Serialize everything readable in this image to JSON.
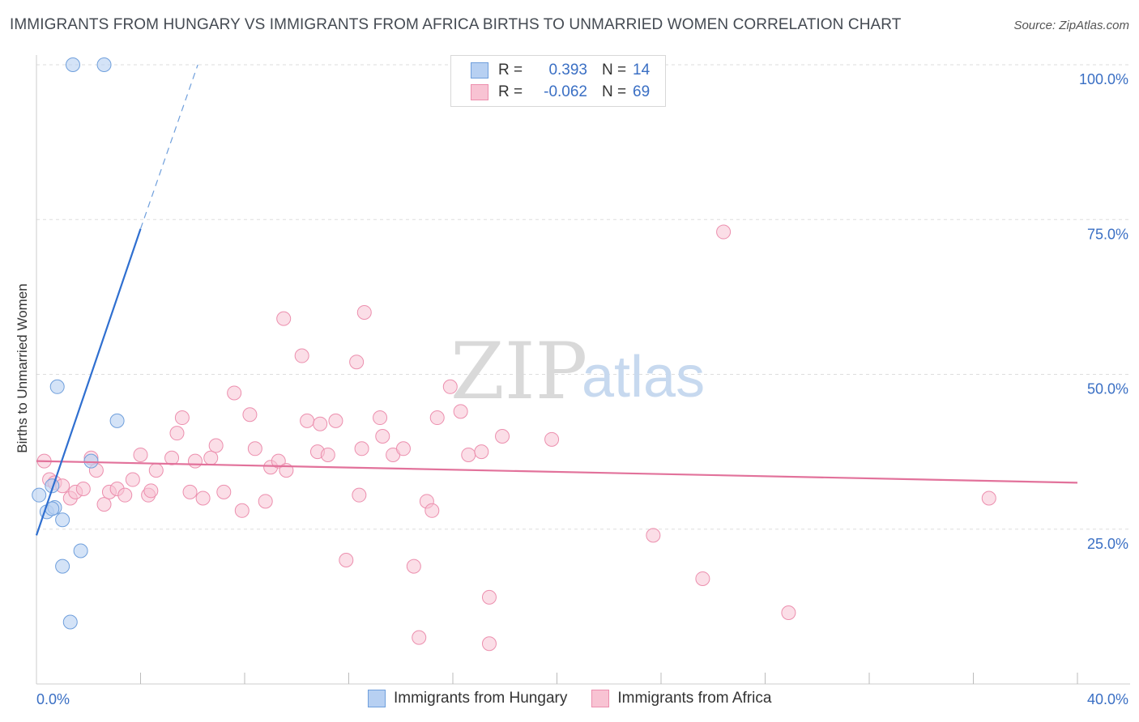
{
  "title": "IMMIGRANTS FROM HUNGARY VS IMMIGRANTS FROM AFRICA BIRTHS TO UNMARRIED WOMEN CORRELATION CHART",
  "source": "Source: ZipAtlas.com",
  "watermark": {
    "zip": "ZIP",
    "atlas": "atlas"
  },
  "colors": {
    "hungary_fill": "#b7d0f2",
    "hungary_stroke": "#6f9fdc",
    "hungary_line": "#2f6fd0",
    "africa_fill": "#f8c3d3",
    "africa_stroke": "#ec8fae",
    "africa_line": "#e2729b",
    "tick_label": "#3a6fc4",
    "grid": "#dddddd"
  },
  "legend": {
    "hungary": {
      "r_label": "R =",
      "r_value": "0.393",
      "n_label": "N =",
      "n_value": "14"
    },
    "africa": {
      "r_label": "R =",
      "r_value": "-0.062",
      "n_label": "N =",
      "n_value": "69"
    }
  },
  "chart_data": {
    "type": "scatter",
    "title": "IMMIGRANTS FROM HUNGARY VS IMMIGRANTS FROM AFRICA BIRTHS TO UNMARRIED WOMEN CORRELATION CHART",
    "xlabel": "",
    "ylabel": "Births to Unmarried Women",
    "xlim": [
      0,
      40
    ],
    "ylim": [
      0,
      100
    ],
    "x_tick_labels": {
      "min": "0.0%",
      "max": "40.0%"
    },
    "y_ticks": [
      25,
      50,
      75,
      100
    ],
    "y_tick_labels": [
      "25.0%",
      "50.0%",
      "75.0%",
      "100.0%"
    ],
    "grid": true,
    "legend_position": "top-center and bottom",
    "series": [
      {
        "name": "Immigrants from Hungary",
        "R": 0.393,
        "N": 14,
        "points": [
          [
            0.1,
            30.5
          ],
          [
            0.4,
            27.8
          ],
          [
            0.6,
            32.0
          ],
          [
            0.7,
            28.5
          ],
          [
            0.8,
            48.0
          ],
          [
            1.0,
            26.5
          ],
          [
            1.0,
            19.0
          ],
          [
            1.3,
            10.0
          ],
          [
            1.4,
            100.0
          ],
          [
            1.7,
            21.5
          ],
          [
            2.1,
            36.0
          ],
          [
            2.6,
            100.0
          ],
          [
            3.1,
            42.5
          ],
          [
            0.6,
            28.3
          ]
        ],
        "trend": {
          "x0": 0,
          "y0": 24.0,
          "x1": 4.0,
          "y1": 73.5,
          "dash_to_x": 6.2,
          "dash_to_y": 100.0
        }
      },
      {
        "name": "Immigrants from Africa",
        "R": -0.062,
        "N": 69,
        "points": [
          [
            0.3,
            36.0
          ],
          [
            0.5,
            33.0
          ],
          [
            0.7,
            32.5
          ],
          [
            1.0,
            32.0
          ],
          [
            1.3,
            30.0
          ],
          [
            1.5,
            31.0
          ],
          [
            1.8,
            31.5
          ],
          [
            2.1,
            36.5
          ],
          [
            2.3,
            34.5
          ],
          [
            2.6,
            29.0
          ],
          [
            2.8,
            31.0
          ],
          [
            3.1,
            31.5
          ],
          [
            3.4,
            30.5
          ],
          [
            3.7,
            33.0
          ],
          [
            4.0,
            37.0
          ],
          [
            4.3,
            30.5
          ],
          [
            4.6,
            34.5
          ],
          [
            5.2,
            36.5
          ],
          [
            5.4,
            40.5
          ],
          [
            5.6,
            43.0
          ],
          [
            5.9,
            31.0
          ],
          [
            6.1,
            36.0
          ],
          [
            6.4,
            30.0
          ],
          [
            6.7,
            36.5
          ],
          [
            6.9,
            38.5
          ],
          [
            7.2,
            31.0
          ],
          [
            7.6,
            47.0
          ],
          [
            7.9,
            28.0
          ],
          [
            8.2,
            43.5
          ],
          [
            8.4,
            38.0
          ],
          [
            8.8,
            29.5
          ],
          [
            9.0,
            35.0
          ],
          [
            9.3,
            36.0
          ],
          [
            9.5,
            59.0
          ],
          [
            9.6,
            34.5
          ],
          [
            10.2,
            53.0
          ],
          [
            10.4,
            42.5
          ],
          [
            10.8,
            37.5
          ],
          [
            10.9,
            42.0
          ],
          [
            11.2,
            37.0
          ],
          [
            11.5,
            42.5
          ],
          [
            11.9,
            20.0
          ],
          [
            12.3,
            52.0
          ],
          [
            12.4,
            30.5
          ],
          [
            12.5,
            38.0
          ],
          [
            12.6,
            60.0
          ],
          [
            13.2,
            43.0
          ],
          [
            13.3,
            40.0
          ],
          [
            13.7,
            37.0
          ],
          [
            14.1,
            38.0
          ],
          [
            14.5,
            19.0
          ],
          [
            14.7,
            7.5
          ],
          [
            15.0,
            29.5
          ],
          [
            15.2,
            28.0
          ],
          [
            15.4,
            43.0
          ],
          [
            15.9,
            48.0
          ],
          [
            16.3,
            44.0
          ],
          [
            16.6,
            37.0
          ],
          [
            17.1,
            37.5
          ],
          [
            17.4,
            14.0
          ],
          [
            17.4,
            6.5
          ],
          [
            17.9,
            40.0
          ],
          [
            19.8,
            39.5
          ],
          [
            23.7,
            24.0
          ],
          [
            25.6,
            17.0
          ],
          [
            26.4,
            73.0
          ],
          [
            28.9,
            11.5
          ],
          [
            36.6,
            30.0
          ],
          [
            4.4,
            31.2
          ]
        ],
        "trend": {
          "x0": 0,
          "y0": 36.0,
          "x1": 40.0,
          "y1": 32.5
        }
      }
    ]
  },
  "bottom_legend": [
    "Immigrants from Hungary",
    "Immigrants from Africa"
  ]
}
